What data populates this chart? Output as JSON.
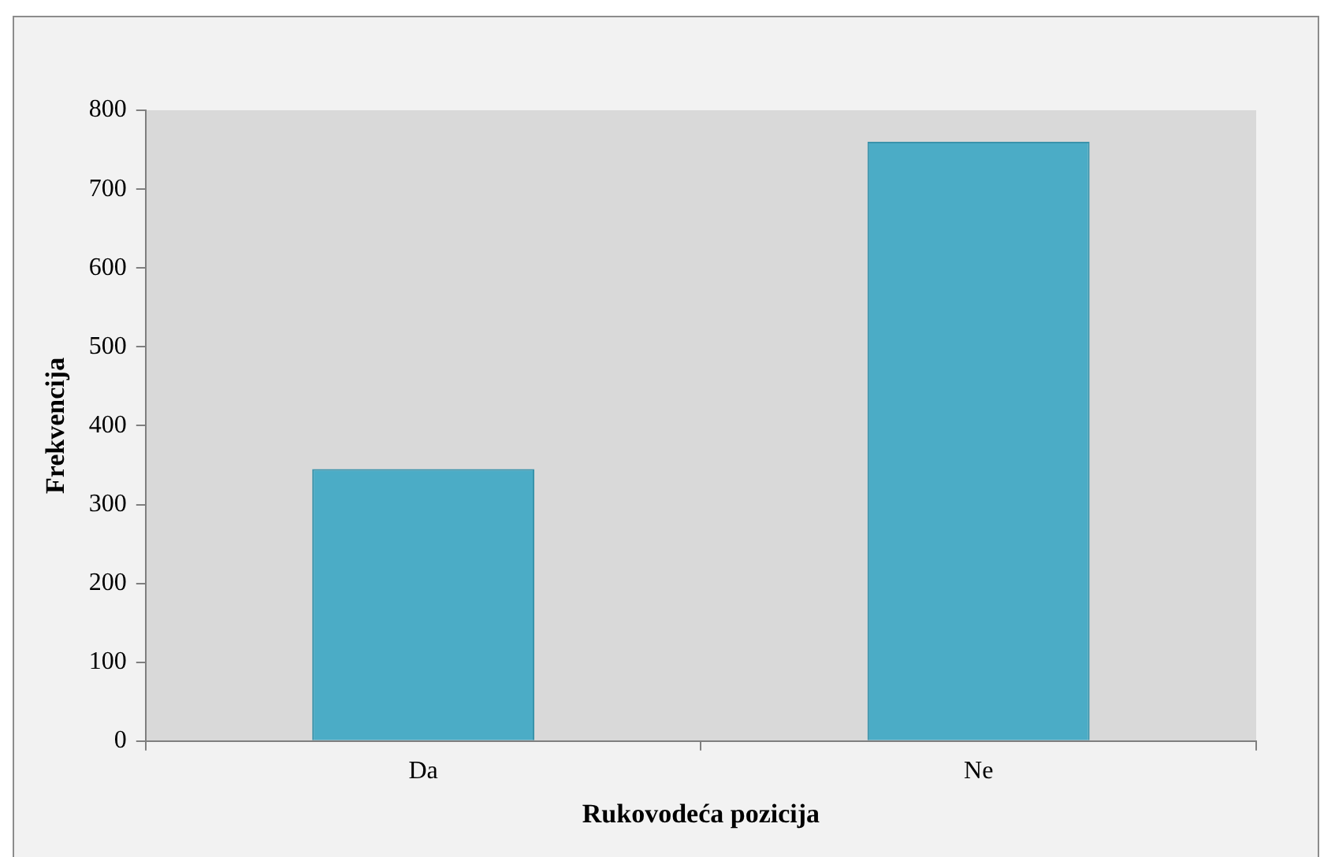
{
  "chart_data": {
    "type": "bar",
    "xlabel": "Rukovodeća pozicija",
    "ylabel": "Frekvencija",
    "categories": [
      "Da",
      "Ne"
    ],
    "values": [
      345,
      760
    ],
    "color": "#4bacc6",
    "ylim": [
      0,
      800
    ],
    "yticks": [
      0,
      100,
      200,
      300,
      400,
      500,
      600,
      700,
      800
    ],
    "grid": false
  }
}
